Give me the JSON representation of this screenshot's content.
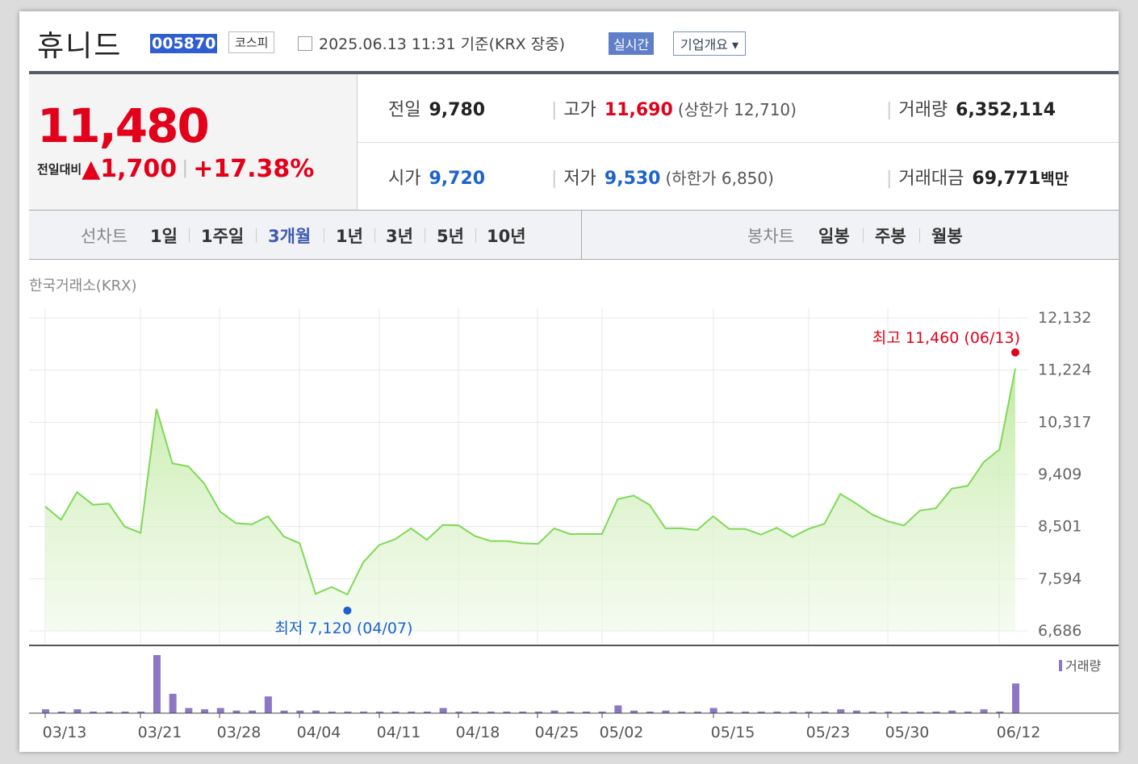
{
  "stock": {
    "name": "휴니드",
    "code": "005870",
    "market": "코스피",
    "datetime": "2025.06.13 11:31  기준(KRX 장중)",
    "realtime_label": "실시간",
    "company_label": "기업개요 ▾"
  },
  "price": {
    "current": "11,480",
    "change_label": "전일대비",
    "change_arrow": "▲",
    "change": "1,700",
    "change_pct": "+17.38%"
  },
  "stats": {
    "prev_label": "전일",
    "prev": "9,780",
    "high_label": "고가",
    "high": "11,690",
    "upper_limit": "(상한가 12,710)",
    "volume_label": "거래량",
    "volume": "6,352,114",
    "open_label": "시가",
    "open": "9,720",
    "low_label": "저가",
    "low": "9,530",
    "lower_limit": "(하한가 6,850)",
    "amount_label": "거래대금",
    "amount": "69,771",
    "amount_unit": "백만"
  },
  "tabs": {
    "line_label": "선차트",
    "line": [
      "1일",
      "1주일",
      "3개월",
      "1년",
      "3년",
      "5년",
      "10년"
    ],
    "active": "3개월",
    "candle_label": "봉차트",
    "candle": [
      "일봉",
      "주봉",
      "월봉"
    ]
  },
  "source_label": "한국거래소(KRX)",
  "colors": {
    "up": "#e3001b",
    "down": "#1e62d0",
    "line": "#7ed957",
    "volume": "#8d77c4"
  },
  "chart_data": {
    "type": "area",
    "xlabel": "",
    "ylabel": "",
    "ylim": [
      6686,
      12132
    ],
    "y_ticks": [
      "12,132",
      "11,224",
      "10,317",
      "9,409",
      "8,501",
      "7,594",
      "6,686"
    ],
    "x_ticks": [
      "03/13",
      "03/21",
      "03/28",
      "04/04",
      "04/11",
      "04/18",
      "04/25",
      "05/02",
      "05/15",
      "05/23",
      "05/30",
      "06/12"
    ],
    "price": [
      8850,
      8620,
      9100,
      8880,
      8900,
      8500,
      8390,
      10550,
      9600,
      9550,
      9250,
      8760,
      8560,
      8540,
      8680,
      8330,
      8210,
      7330,
      7450,
      7320,
      7880,
      8180,
      8280,
      8470,
      8270,
      8530,
      8520,
      8340,
      8250,
      8250,
      8210,
      8200,
      8470,
      8370,
      8370,
      8370,
      8980,
      9040,
      8880,
      8470,
      8470,
      8440,
      8680,
      8460,
      8460,
      8360,
      8480,
      8320,
      8460,
      8550,
      9070,
      8900,
      8710,
      8590,
      8520,
      8780,
      8820,
      9160,
      9210,
      9620,
      9840,
      11250
    ],
    "volume": [
      6,
      2,
      6,
      2,
      2,
      2,
      2,
      90,
      30,
      8,
      6,
      8,
      4,
      4,
      26,
      4,
      4,
      4,
      2,
      2,
      2,
      2,
      2,
      2,
      2,
      8,
      2,
      2,
      2,
      2,
      2,
      2,
      4,
      2,
      2,
      2,
      12,
      4,
      2,
      4,
      2,
      2,
      8,
      2,
      2,
      2,
      2,
      2,
      2,
      2,
      6,
      4,
      2,
      2,
      2,
      2,
      2,
      4,
      2,
      6,
      2,
      46
    ],
    "max_label": "최고 11,460 (06/13)",
    "min_label": "최저 7,120 (04/07)",
    "volume_legend": "거래량"
  }
}
